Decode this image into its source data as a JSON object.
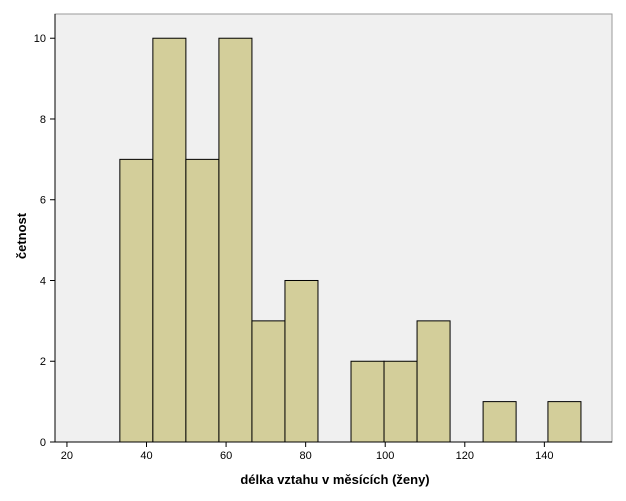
{
  "chart_data": {
    "type": "bar",
    "title": "",
    "xlabel": "délka vztahu v měsících (ženy)",
    "ylabel": "četnost",
    "xlim": [
      17,
      157
    ],
    "ylim": [
      0,
      10.6
    ],
    "xticks": [
      20,
      40,
      60,
      80,
      100,
      120,
      140
    ],
    "yticks": [
      0,
      2,
      4,
      6,
      8,
      10
    ],
    "grid": false,
    "legend": "none",
    "bins": [
      {
        "x0": 33.3,
        "x1": 41.6,
        "value": 7
      },
      {
        "x0": 41.6,
        "x1": 49.9,
        "value": 10
      },
      {
        "x0": 49.9,
        "x1": 58.2,
        "value": 7
      },
      {
        "x0": 58.2,
        "x1": 66.5,
        "value": 10
      },
      {
        "x0": 66.5,
        "x1": 74.8,
        "value": 3
      },
      {
        "x0": 74.8,
        "x1": 83.1,
        "value": 4
      },
      {
        "x0": 91.4,
        "x1": 99.7,
        "value": 2
      },
      {
        "x0": 99.7,
        "x1": 108.0,
        "value": 2
      },
      {
        "x0": 108.0,
        "x1": 116.3,
        "value": 3
      },
      {
        "x0": 124.6,
        "x1": 132.9,
        "value": 1
      },
      {
        "x0": 140.9,
        "x1": 149.2,
        "value": 1
      }
    ],
    "colors": {
      "bar_fill": "#d3ce9a",
      "bar_stroke": "#000000",
      "plot_background": "#f0f0f0"
    }
  }
}
